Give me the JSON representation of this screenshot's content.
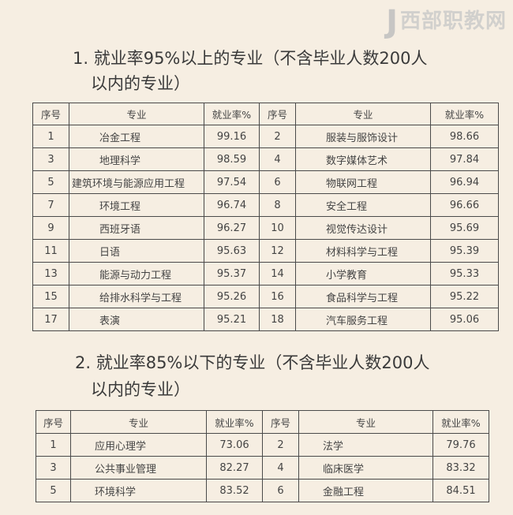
{
  "section1": {
    "title_line1": "1. 就业率95%以上的专业（不含毕业人数200人",
    "title_line2": "以内的专业）",
    "headers": [
      "序号",
      "专业",
      "就业率%",
      "序号",
      "专业",
      "就业率%"
    ],
    "rows": [
      [
        "1",
        "冶金工程",
        "99.16",
        "2",
        "服装与服饰设计",
        "98.66"
      ],
      [
        "3",
        "地理科学",
        "98.59",
        "4",
        "数字媒体艺术",
        "97.84"
      ],
      [
        "5",
        "建筑环境与能源应用工程",
        "97.54",
        "6",
        "物联网工程",
        "96.94"
      ],
      [
        "7",
        "环境工程",
        "96.74",
        "8",
        "安全工程",
        "96.66"
      ],
      [
        "9",
        "西班牙语",
        "96.27",
        "10",
        "视觉传达设计",
        "95.69"
      ],
      [
        "11",
        "日语",
        "95.63",
        "12",
        "材料科学与工程",
        "95.39"
      ],
      [
        "13",
        "能源与动力工程",
        "95.37",
        "14",
        "小学教育",
        "95.33"
      ],
      [
        "15",
        "给排水科学与工程",
        "95.26",
        "16",
        "食品科学与工程",
        "95.22"
      ],
      [
        "17",
        "表演",
        "95.21",
        "18",
        "汽车服务工程",
        "95.06"
      ]
    ]
  },
  "section2": {
    "title_line1": "2. 就业率85%以下的专业（不含毕业人数200人",
    "title_line2": "以内的专业）",
    "headers": [
      "序号",
      "专业",
      "就业率%",
      "序号",
      "专业",
      "就业率%"
    ],
    "rows": [
      [
        "1",
        "应用心理学",
        "73.06",
        "2",
        "法学",
        "79.76"
      ],
      [
        "3",
        "公共事业管理",
        "82.27",
        "4",
        "临床医学",
        "83.32"
      ],
      [
        "5",
        "环境科学",
        "83.52",
        "6",
        "金融工程",
        "84.51"
      ]
    ]
  },
  "watermark": "西部职教网"
}
